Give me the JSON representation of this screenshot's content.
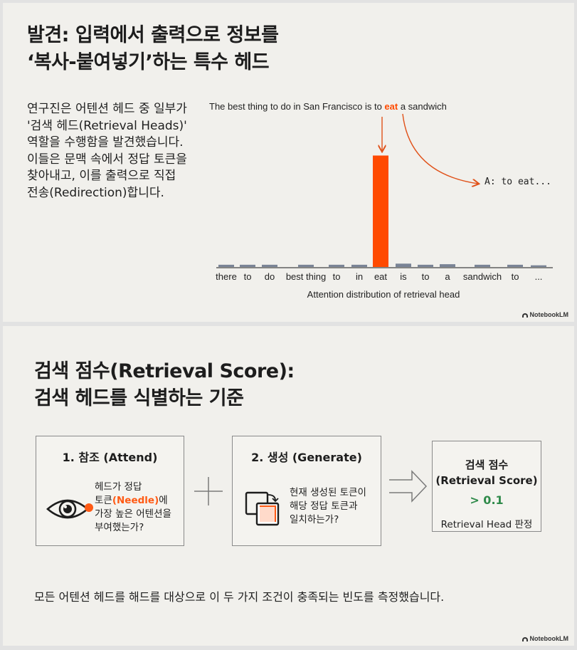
{
  "slide1": {
    "title_line1": "발견: 입력에서 출력으로 정보를",
    "title_line2": "‘복사-붙여넣기’하는 특수 헤드",
    "body_lines": [
      "연구진은 어텐션 헤드 중 일부가",
      "'검색 헤드(Retrieval Heads)'",
      "역할을 수행함을 발견했습니다.",
      "이들은 문맥 속에서 정답 토큰을",
      "찾아내고, 이를 출력으로 직접",
      "전송(Redirection)합니다."
    ],
    "caption_before": "The best thing to do in San Francisco is to ",
    "caption_highlight": "eat",
    "caption_after": " a sandwich",
    "answer": "A: to eat...",
    "brand": "NotebookLM"
  },
  "chart_data": {
    "type": "bar",
    "categories": [
      "there",
      "to",
      "do",
      "best thing",
      "to",
      "in",
      "eat",
      "is",
      "to",
      "a",
      "sandwich",
      "to",
      "..."
    ],
    "values": [
      0.02,
      0.02,
      0.02,
      0.02,
      0.02,
      0.02,
      1.0,
      0.03,
      0.02,
      0.025,
      0.02,
      0.02,
      0.015
    ],
    "highlight_index": 6,
    "highlight_color": "#ff4a00",
    "bar_color": "#7a8496",
    "xlabel": "Attention distribution of retrieval head",
    "ylabel": "",
    "ylim": [
      0,
      1.15
    ],
    "grid": false
  },
  "slide2": {
    "title_line1": "검색 점수(Retrieval Score):",
    "title_line2": "검색 헤드를 식별하는 기준",
    "attend": {
      "title": "1. 참조 (Attend)",
      "desc_line1": "헤드가 정답",
      "desc_token": "토큰",
      "desc_needle": "(Needle)",
      "desc_suffix": "에",
      "desc_line3": "가장 높은 어텐션을",
      "desc_line4": "부여했는가?",
      "icon": "eye-icon"
    },
    "generate": {
      "title": "2. 생성 (Generate)",
      "desc_line1": "현재 생성된 토큰이",
      "desc_line2": "해당 정답 토큰과",
      "desc_line3": "일치하는가?",
      "icon": "copy-icon"
    },
    "score": {
      "title_line1": "검색 점수",
      "title_line2": "(Retrieval Score)",
      "value": "> 0.1",
      "judge": "Retrieval Head 판정"
    },
    "footer": "모든 어텐션 헤드를 해드를 대상으로 이 두 가지 조건이 충족되는 빈도를 측정했습니다.",
    "brand": "NotebookLM"
  },
  "colors": {
    "accent": "#ff4a00",
    "score_green": "#2f8a4a",
    "background": "#f1f0ec"
  }
}
